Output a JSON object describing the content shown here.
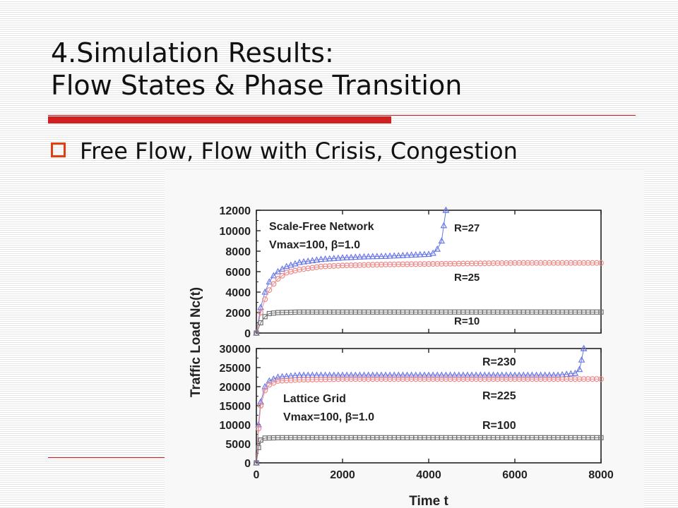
{
  "slide": {
    "title_line1": "4.Simulation Results:",
    "title_line2": "Flow States & Phase Transition",
    "bullet": "Free Flow, Flow with Crisis, Congestion"
  },
  "colors": {
    "accent_red": "#d21f1f",
    "bullet_orange": "#e04010",
    "series_blue": "#6a78e8",
    "series_red": "#ee8a8a",
    "series_gray": "#707070"
  },
  "chart_data": [
    {
      "type": "scatter",
      "panel": "top",
      "annotation_lines": [
        "Scale-Free Network",
        "Vmax=100, β=1.0"
      ],
      "ylabel": "Traffic Load  Nc(t)",
      "xlabel": "",
      "xlim": [
        0,
        8000
      ],
      "ylim": [
        0,
        12000
      ],
      "yticks": [
        "0",
        "2000",
        "4000",
        "6000",
        "8000",
        "10000",
        "12000"
      ],
      "series": [
        {
          "name": "R=27",
          "marker": "triangle",
          "color": "blue",
          "x": [
            0,
            100,
            200,
            300,
            400,
            500,
            700,
            1000,
            1500,
            2000,
            2500,
            3000,
            3500,
            4000,
            4100,
            4200,
            4300,
            4350,
            4400
          ],
          "y": [
            0,
            2500,
            4000,
            5000,
            5600,
            6000,
            6500,
            6900,
            7200,
            7350,
            7450,
            7500,
            7600,
            7700,
            7800,
            8200,
            9000,
            10500,
            12000
          ]
        },
        {
          "name": "R=25",
          "marker": "circle",
          "color": "red",
          "x": [
            0,
            100,
            200,
            300,
            400,
            500,
            700,
            1000,
            1500,
            2000,
            2500,
            3000,
            4000,
            5000,
            6000,
            7000,
            8000
          ],
          "y": [
            0,
            2000,
            3300,
            4200,
            4800,
            5300,
            5900,
            6200,
            6500,
            6600,
            6650,
            6700,
            6750,
            6800,
            6850,
            6850,
            6850
          ]
        },
        {
          "name": "R=10",
          "marker": "square",
          "color": "gray",
          "x": [
            0,
            100,
            200,
            300,
            500,
            1000,
            2000,
            3000,
            4000,
            5000,
            6000,
            7000,
            8000
          ],
          "y": [
            0,
            1000,
            1600,
            1900,
            2000,
            2050,
            2050,
            2050,
            2050,
            2050,
            2050,
            2050,
            2050
          ]
        }
      ]
    },
    {
      "type": "scatter",
      "panel": "bottom",
      "annotation_lines": [
        "Lattice Grid",
        "Vmax=100, β=1.0"
      ],
      "xlabel": "Time t",
      "ylabel": "Traffic Load  Nc(t)",
      "xlim": [
        0,
        8000
      ],
      "ylim": [
        0,
        30000
      ],
      "xticks": [
        "0",
        "2000",
        "4000",
        "6000",
        "8000"
      ],
      "yticks": [
        "0",
        "5000",
        "10000",
        "15000",
        "20000",
        "25000",
        "30000"
      ],
      "series": [
        {
          "name": "R=230",
          "marker": "triangle",
          "color": "blue",
          "x": [
            0,
            50,
            100,
            200,
            300,
            500,
            1000,
            2000,
            3000,
            4000,
            5000,
            6000,
            7000,
            7400,
            7500,
            7550,
            7600
          ],
          "y": [
            0,
            10000,
            16000,
            20000,
            21500,
            22500,
            23000,
            23000,
            23000,
            23000,
            23000,
            23000,
            23000,
            23500,
            24500,
            27000,
            30000
          ]
        },
        {
          "name": "R=225",
          "marker": "circle",
          "color": "red",
          "x": [
            0,
            50,
            100,
            200,
            300,
            500,
            1000,
            2000,
            3000,
            4000,
            5000,
            6000,
            7000,
            8000
          ],
          "y": [
            0,
            9000,
            15000,
            19000,
            20500,
            21500,
            21800,
            22000,
            22000,
            22000,
            22000,
            22000,
            22000,
            22000
          ]
        },
        {
          "name": "R=100",
          "marker": "square",
          "color": "gray",
          "x": [
            0,
            50,
            100,
            200,
            500,
            1000,
            2000,
            3000,
            4000,
            5000,
            6000,
            7000,
            8000
          ],
          "y": [
            0,
            4000,
            6000,
            6500,
            6600,
            6600,
            6600,
            6600,
            6600,
            6600,
            6600,
            6600,
            6600
          ]
        }
      ]
    }
  ]
}
